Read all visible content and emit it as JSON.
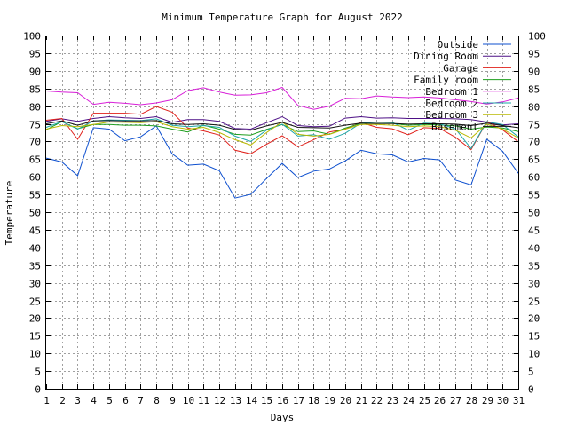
{
  "chart_data": {
    "type": "line",
    "title": "Minimum Temperature Graph for August 2022",
    "xlabel": "Days",
    "ylabel": "Temperature",
    "xlim": [
      1,
      31
    ],
    "ylim": [
      0,
      100
    ],
    "x_ticks": [
      1,
      2,
      3,
      4,
      5,
      6,
      7,
      8,
      9,
      10,
      11,
      12,
      13,
      14,
      15,
      16,
      17,
      18,
      19,
      20,
      21,
      22,
      23,
      24,
      25,
      26,
      27,
      28,
      29,
      30,
      31
    ],
    "y_ticks": [
      0,
      5,
      10,
      15,
      20,
      25,
      30,
      35,
      40,
      45,
      50,
      55,
      60,
      65,
      70,
      75,
      80,
      85,
      90,
      95,
      100
    ],
    "grid": true,
    "legend_position": "top-right",
    "x": [
      1,
      2,
      3,
      4,
      5,
      6,
      7,
      8,
      9,
      10,
      11,
      12,
      13,
      14,
      15,
      16,
      17,
      18,
      19,
      20,
      21,
      22,
      23,
      24,
      25,
      26,
      27,
      28,
      29,
      30,
      31
    ],
    "series": [
      {
        "name": "Outside",
        "color": "#0d4fcf",
        "values": [
          65.3,
          64.2,
          60.3,
          73.9,
          73.5,
          70.2,
          71.3,
          74.4,
          66.5,
          63.3,
          63.6,
          61.7,
          54.0,
          55.0,
          59.5,
          63.8,
          59.8,
          61.6,
          62.2,
          64.5,
          67.5,
          66.5,
          66.2,
          64.2,
          65.2,
          64.8,
          59.1,
          57.7,
          70.6,
          67.2,
          61.0
        ]
      },
      {
        "name": "Dining Room",
        "color": "#4d1086",
        "values": [
          75.7,
          76.4,
          75.7,
          76.5,
          77.0,
          76.7,
          76.5,
          77.0,
          75.4,
          76.2,
          76.2,
          75.7,
          73.7,
          73.5,
          75.3,
          77.0,
          74.5,
          74.2,
          74.3,
          76.6,
          77.0,
          76.6,
          76.7,
          76.5,
          76.5,
          76.5,
          76.4,
          76.2,
          75.5,
          74.7,
          75.0
        ]
      },
      {
        "name": "Garage",
        "color": "#e0201a",
        "values": [
          76.0,
          76.5,
          70.6,
          78.0,
          78.0,
          78.0,
          77.7,
          79.9,
          78.3,
          73.8,
          73.0,
          71.8,
          67.5,
          66.5,
          69.2,
          71.6,
          68.5,
          70.5,
          72.7,
          73.5,
          75.4,
          74.0,
          73.6,
          71.9,
          73.9,
          73.7,
          71.2,
          67.7,
          75.6,
          73.3,
          69.9
        ]
      },
      {
        "name": "Family room",
        "color": "#1e9e1e",
        "values": [
          73.3,
          75.6,
          73.6,
          74.8,
          74.8,
          74.6,
          74.6,
          74.4,
          73.5,
          72.7,
          74.6,
          73.5,
          72.0,
          71.8,
          73.4,
          74.8,
          72.8,
          73.0,
          72.0,
          73.8,
          75.1,
          75.1,
          75.1,
          74.6,
          74.8,
          74.7,
          74.4,
          73.5,
          74.1,
          73.8,
          72.8
        ]
      },
      {
        "name": "Bedroom 1",
        "color": "#d81fd8",
        "values": [
          84.3,
          84.0,
          83.8,
          80.5,
          81.1,
          80.8,
          80.4,
          80.9,
          81.8,
          84.4,
          85.2,
          84.0,
          83.1,
          83.2,
          83.8,
          85.3,
          80.2,
          79.1,
          80.0,
          82.2,
          82.1,
          82.9,
          82.6,
          82.4,
          82.6,
          82.3,
          81.8,
          81.3,
          80.6,
          81.2,
          82.3
        ]
      },
      {
        "name": "Bedroom 2",
        "color": "#1ea7a7",
        "values": [
          74.0,
          75.6,
          73.5,
          75.8,
          76.1,
          76.0,
          75.9,
          76.4,
          74.6,
          74.2,
          74.5,
          74.0,
          71.5,
          70.0,
          73.2,
          74.9,
          71.5,
          71.9,
          70.6,
          72.3,
          75.2,
          75.5,
          75.4,
          73.2,
          75.2,
          75.0,
          73.6,
          68.0,
          75.6,
          74.8,
          71.3
        ]
      },
      {
        "name": "Bedroom 3",
        "color": "#b8b800",
        "values": [
          73.5,
          74.5,
          74.2,
          74.8,
          75.5,
          75.4,
          75.3,
          75.6,
          74.2,
          73.5,
          74.0,
          72.5,
          70.5,
          69.0,
          72.5,
          75.5,
          72.0,
          71.5,
          72.0,
          73.5,
          74.8,
          74.8,
          74.6,
          74.2,
          74.4,
          74.2,
          73.2,
          71.0,
          74.9,
          73.5,
          71.0
        ]
      },
      {
        "name": "Basement",
        "color": "#111111",
        "values": [
          75.0,
          75.8,
          74.6,
          75.8,
          75.9,
          75.8,
          75.8,
          75.9,
          75.0,
          74.8,
          75.0,
          74.6,
          73.4,
          73.2,
          74.4,
          75.4,
          74.0,
          73.9,
          73.8,
          74.6,
          75.2,
          75.1,
          75.1,
          74.9,
          75.0,
          75.0,
          74.9,
          74.5,
          75.2,
          74.5,
          73.9
        ]
      }
    ]
  }
}
